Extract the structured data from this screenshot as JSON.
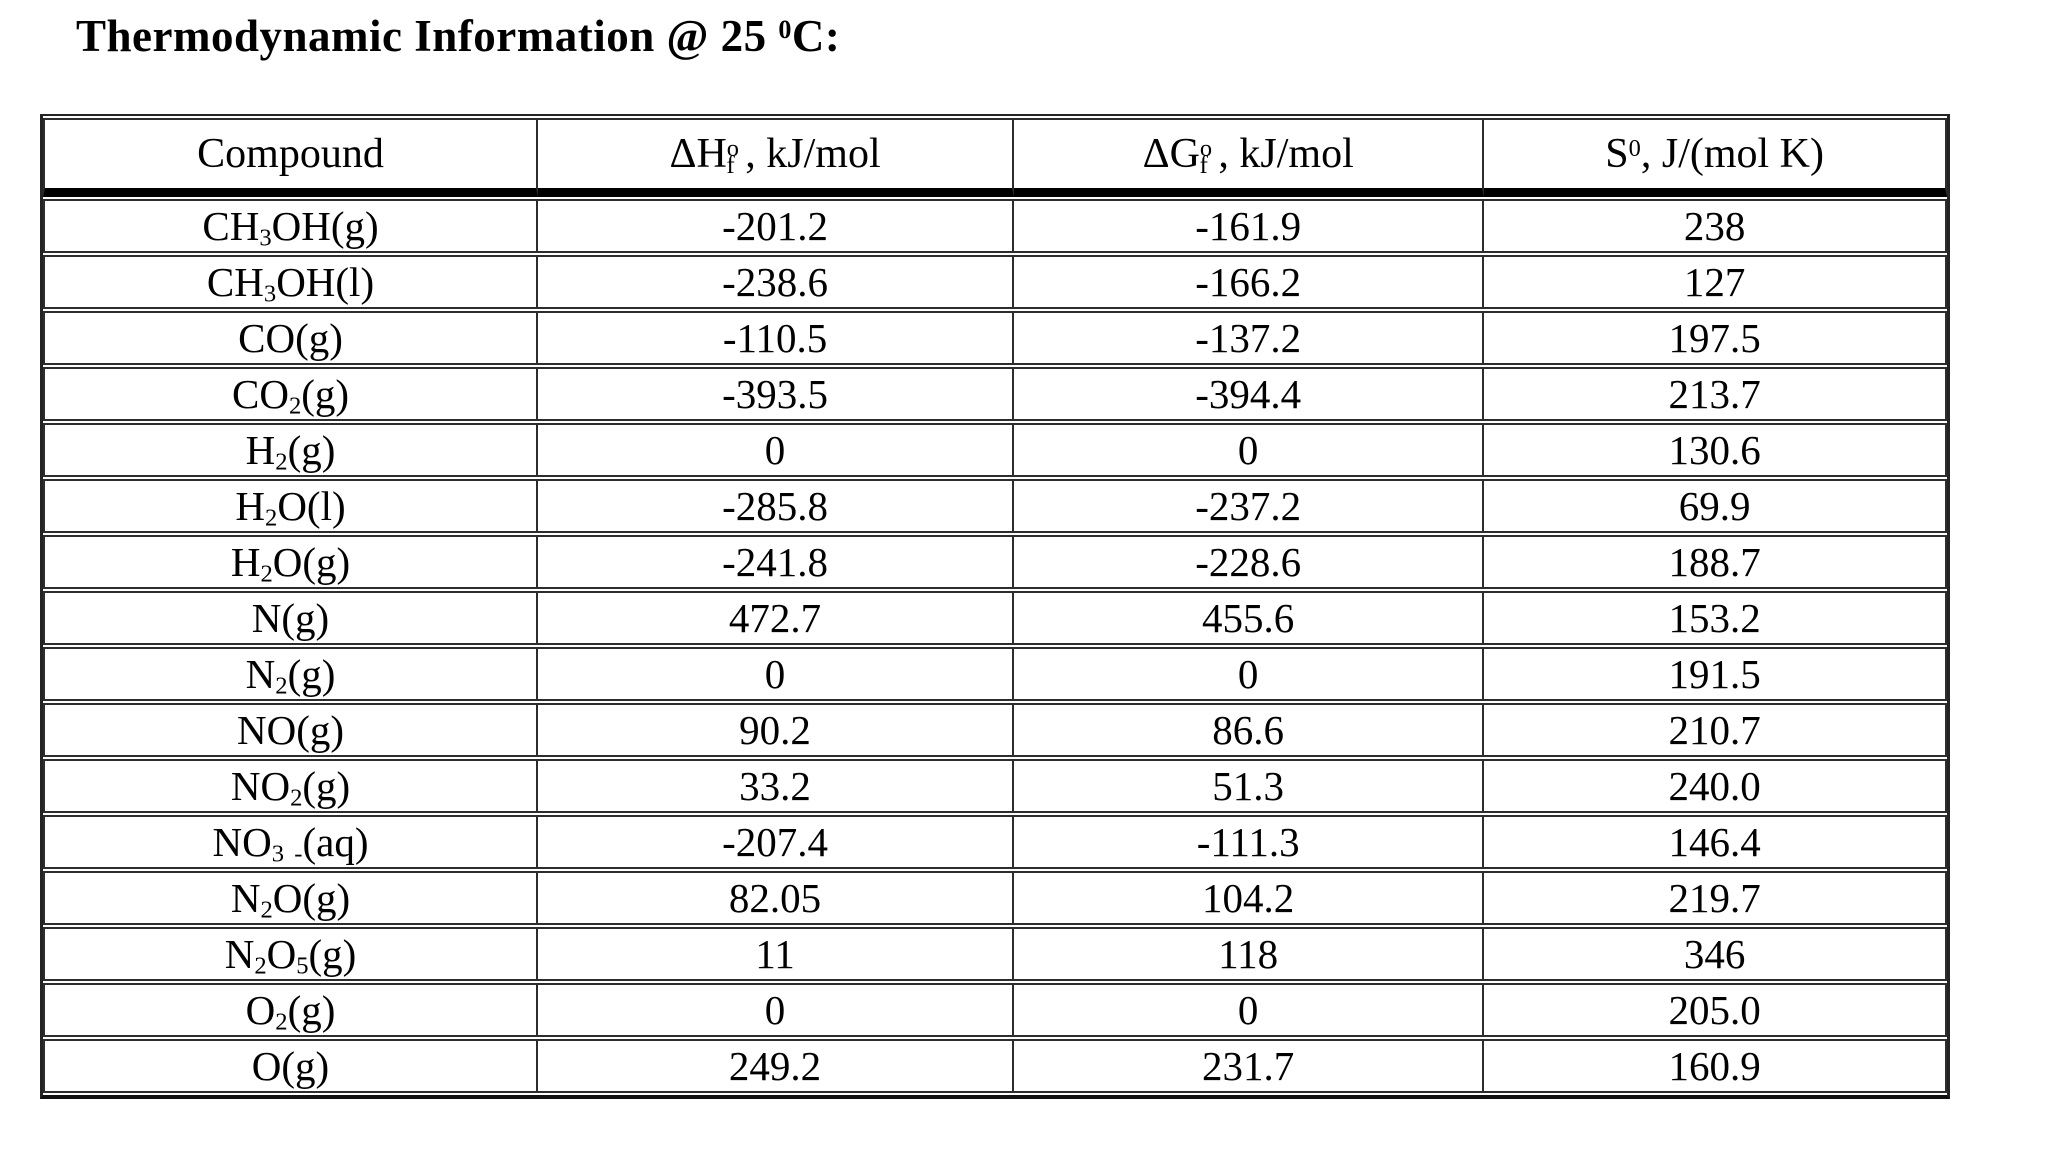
{
  "page": {
    "title_segments": [
      {
        "t": "Thermodynamic Information @ 25 "
      },
      {
        "sup": "0"
      },
      {
        "t": "C:"
      }
    ]
  },
  "colors": {
    "text": "#000000",
    "grid_thin": "#2d2d2d",
    "grid_thick": "#000000",
    "background": "#ffffff"
  },
  "table": {
    "columns": [
      {
        "key": "compound",
        "label_segments": [
          {
            "t": "Compound"
          }
        ]
      },
      {
        "key": "dHf",
        "label_segments": [
          {
            "t": "ΔH"
          },
          {
            "sup": "o"
          },
          {
            "sub": "f",
            "tight": true
          },
          {
            "t": " , kJ/mol"
          }
        ]
      },
      {
        "key": "dGf",
        "label_segments": [
          {
            "t": "ΔG"
          },
          {
            "sup": "o"
          },
          {
            "sub": "f",
            "tight": true
          },
          {
            "t": " , kJ/mol"
          }
        ]
      },
      {
        "key": "S",
        "label_segments": [
          {
            "t": "S"
          },
          {
            "sup": "0"
          },
          {
            "t": ", J/(mol K)"
          }
        ]
      }
    ],
    "rows": [
      {
        "compound": [
          {
            "t": "CH"
          },
          {
            "sub": "3"
          },
          {
            "t": "OH(g)"
          }
        ],
        "dHf": "-201.2",
        "dGf": "-161.9",
        "S": "238"
      },
      {
        "compound": [
          {
            "t": "CH"
          },
          {
            "sub": "3"
          },
          {
            "t": "OH(l)"
          }
        ],
        "dHf": "-238.6",
        "dGf": "-166.2",
        "S": "127"
      },
      {
        "compound": [
          {
            "t": "CO(g)"
          }
        ],
        "dHf": "-110.5",
        "dGf": "-137.2",
        "S": "197.5"
      },
      {
        "compound": [
          {
            "t": "CO"
          },
          {
            "sub": "2"
          },
          {
            "t": "(g)"
          }
        ],
        "dHf": "-393.5",
        "dGf": "-394.4",
        "S": "213.7"
      },
      {
        "compound": [
          {
            "t": "H"
          },
          {
            "sub": "2"
          },
          {
            "t": "(g)"
          }
        ],
        "dHf": "0",
        "dGf": "0",
        "S": "130.6"
      },
      {
        "compound": [
          {
            "t": "H"
          },
          {
            "sub": "2"
          },
          {
            "t": "O(l)"
          }
        ],
        "dHf": "-285.8",
        "dGf": "-237.2",
        "S": "69.9"
      },
      {
        "compound": [
          {
            "t": "H"
          },
          {
            "sub": "2"
          },
          {
            "t": "O(g)"
          }
        ],
        "dHf": "-241.8",
        "dGf": "-228.6",
        "S": "188.7"
      },
      {
        "compound": [
          {
            "t": "N(g)"
          }
        ],
        "dHf": "472.7",
        "dGf": "455.6",
        "S": "153.2"
      },
      {
        "compound": [
          {
            "t": "N"
          },
          {
            "sub": "2"
          },
          {
            "t": "(g)"
          }
        ],
        "dHf": "0",
        "dGf": "0",
        "S": "191.5"
      },
      {
        "compound": [
          {
            "t": "NO(g)"
          }
        ],
        "dHf": "90.2",
        "dGf": "86.6",
        "S": "210.7"
      },
      {
        "compound": [
          {
            "t": "NO"
          },
          {
            "sub": "2"
          },
          {
            "t": "(g)"
          }
        ],
        "dHf": "33.2",
        "dGf": "51.3",
        "S": "240.0"
      },
      {
        "compound": [
          {
            "t": "NO"
          },
          {
            "sub": "3"
          },
          {
            "t": " "
          },
          {
            "sub": "-"
          },
          {
            "t": "(aq)"
          }
        ],
        "dHf": "-207.4",
        "dGf": "-111.3",
        "S": "146.4"
      },
      {
        "compound": [
          {
            "t": "N"
          },
          {
            "sub": "2"
          },
          {
            "t": "O(g)"
          }
        ],
        "dHf": "82.05",
        "dGf": "104.2",
        "S": "219.7"
      },
      {
        "compound": [
          {
            "t": "N"
          },
          {
            "sub": "2"
          },
          {
            "t": "O"
          },
          {
            "sub": "5"
          },
          {
            "t": "(g)"
          }
        ],
        "dHf": "11",
        "dGf": "118",
        "S": "346"
      },
      {
        "compound": [
          {
            "t": "O"
          },
          {
            "sub": "2"
          },
          {
            "t": "(g)"
          }
        ],
        "dHf": "0",
        "dGf": "0",
        "S": "205.0"
      },
      {
        "compound": [
          {
            "t": "O(g)"
          }
        ],
        "dHf": "249.2",
        "dGf": "231.7",
        "S": "160.9"
      }
    ]
  }
}
